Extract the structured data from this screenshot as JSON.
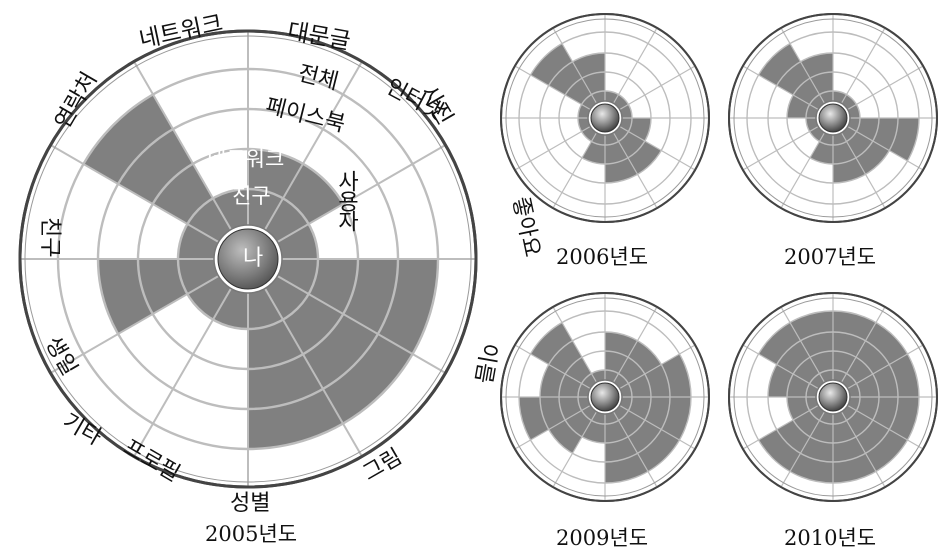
{
  "center_label": "나",
  "inner_labels": [
    "친구",
    "네트워크"
  ],
  "categories": [
    "대문글",
    "전체 사용자",
    "좋아요",
    "이름",
    "그림",
    "성별",
    "기타 프로필",
    "생일",
    "친구",
    "연락처",
    "네트워크",
    "페이스북 인터넷 사진"
  ],
  "category_text": {
    "daemungeul": "대문글",
    "jeonche": "전체",
    "sayongja": "사용자",
    "facebook": "페이스북",
    "internet": "인터넷",
    "sajin": "사진",
    "joayo": "좋아요",
    "ireum": "이름",
    "geurim": "그림",
    "seongbyeol": "성별",
    "gita": "기타",
    "profile": "프로필",
    "saengil": "생일",
    "chingu": "친구",
    "yeonrakcheo": "연락처",
    "network": "네트워크"
  },
  "chart_data": {
    "type": "radial",
    "levels_max": 4,
    "panels": [
      {
        "year": "2005년도",
        "levels": [
          2,
          2,
          1,
          4,
          4,
          4,
          1,
          1,
          3,
          1,
          4,
          1
        ]
      },
      {
        "year": "2006년도",
        "levels": [
          1,
          1,
          1,
          2,
          3,
          3,
          2,
          1,
          1,
          1,
          4,
          3
        ]
      },
      {
        "year": "2007년도",
        "levels": [
          1,
          1,
          1,
          4,
          3,
          3,
          2,
          1,
          1,
          2,
          4,
          3
        ]
      },
      {
        "year": "2009년도",
        "levels": [
          3,
          3,
          4,
          4,
          4,
          4,
          2,
          3,
          4,
          3,
          4,
          1
        ]
      },
      {
        "year": "2010년도",
        "levels": [
          4,
          4,
          4,
          4,
          4,
          4,
          4,
          4,
          2,
          3,
          4,
          4
        ]
      }
    ]
  },
  "colors": {
    "fill": "#808080",
    "ring": "#8a8a8a",
    "text": "#111111",
    "background": "#ffffff"
  }
}
